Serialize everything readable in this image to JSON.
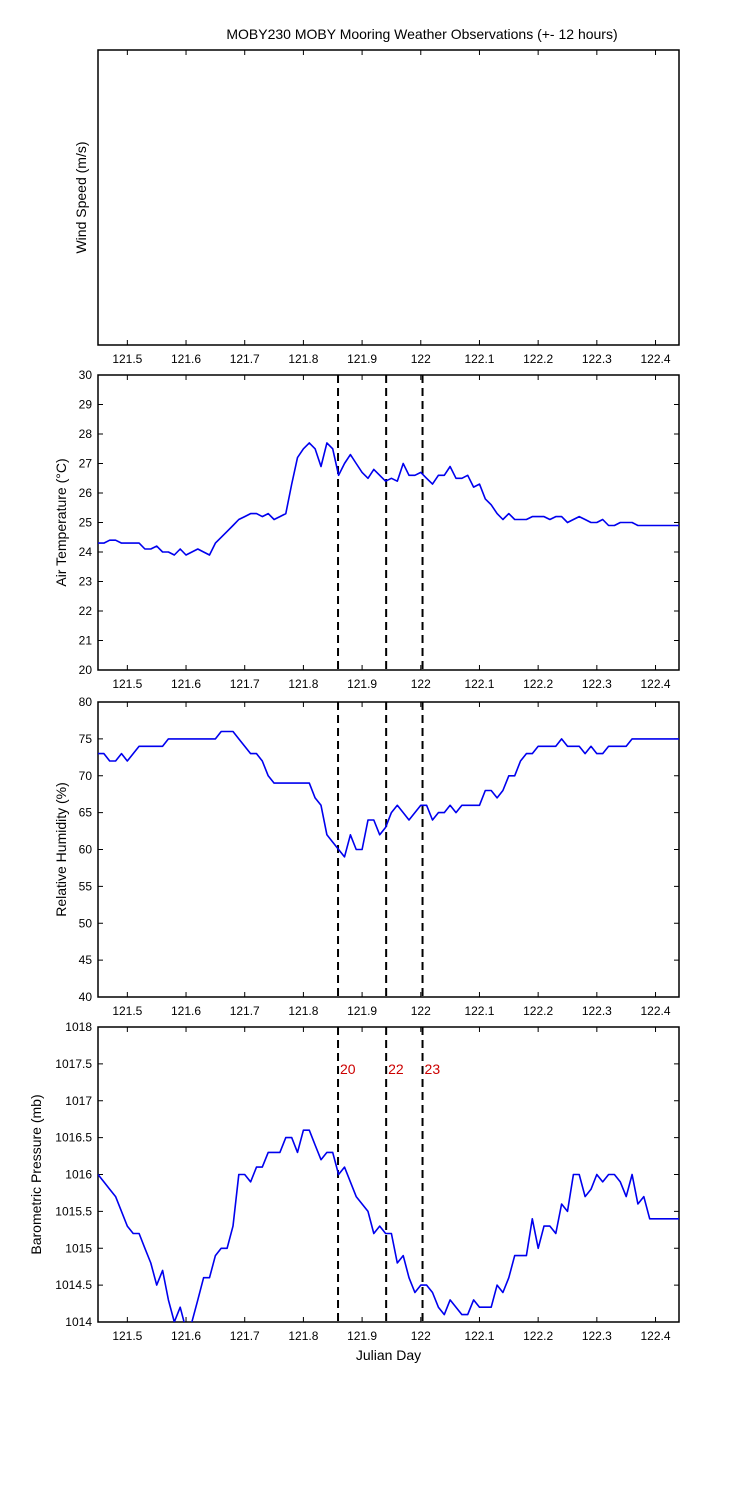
{
  "chart_data": [
    {
      "type": "line",
      "title": "MOBY230 MOBY Mooring Weather Observations (+- 12 hours)",
      "xlabel": "",
      "ylabel": "Wind Speed (m/s)",
      "xlim": [
        121.45,
        122.44
      ],
      "x_ticks": [
        "121.5",
        "121.6",
        "121.7",
        "121.8",
        "121.9",
        "122",
        "122.1",
        "122.2",
        "122.3",
        "122.4"
      ],
      "y_ticks": [],
      "series": [],
      "grid": false
    },
    {
      "type": "line",
      "title": "",
      "xlabel": "",
      "ylabel": "Air Temperature (°C)",
      "xlim": [
        121.45,
        122.44
      ],
      "ylim": [
        20,
        30
      ],
      "x_ticks": [
        "121.5",
        "121.6",
        "121.7",
        "121.8",
        "121.9",
        "122",
        "122.1",
        "122.2",
        "122.3",
        "122.4"
      ],
      "y_ticks": [
        "20",
        "21",
        "22",
        "23",
        "24",
        "25",
        "26",
        "27",
        "28",
        "29",
        "30"
      ],
      "event_lines": [
        121.859,
        121.941,
        122.003
      ],
      "series": [
        {
          "color": "#0000ee",
          "x": [
            121.45,
            121.46,
            121.47,
            121.48,
            121.49,
            121.5,
            121.51,
            121.52,
            121.53,
            121.54,
            121.55,
            121.56,
            121.57,
            121.58,
            121.59,
            121.6,
            121.61,
            121.62,
            121.63,
            121.64,
            121.65,
            121.66,
            121.67,
            121.68,
            121.69,
            121.7,
            121.71,
            121.72,
            121.73,
            121.74,
            121.75,
            121.76,
            121.77,
            121.78,
            121.79,
            121.8,
            121.81,
            121.82,
            121.83,
            121.84,
            121.85,
            121.86,
            121.87,
            121.88,
            121.89,
            121.9,
            121.91,
            121.92,
            121.93,
            121.94,
            121.95,
            121.96,
            121.97,
            121.98,
            121.99,
            122.0,
            122.01,
            122.02,
            122.03,
            122.04,
            122.05,
            122.06,
            122.07,
            122.08,
            122.09,
            122.1,
            122.11,
            122.12,
            122.13,
            122.14,
            122.15,
            122.16,
            122.17,
            122.18,
            122.19,
            122.2,
            122.21,
            122.22,
            122.23,
            122.24,
            122.25,
            122.26,
            122.27,
            122.28,
            122.29,
            122.3,
            122.31,
            122.32,
            122.33,
            122.34,
            122.35,
            122.36,
            122.37,
            122.38,
            122.39,
            122.4,
            122.41,
            122.42,
            122.43,
            122.44
          ],
          "y": [
            24.3,
            24.3,
            24.4,
            24.4,
            24.3,
            24.3,
            24.3,
            24.3,
            24.1,
            24.1,
            24.2,
            24.0,
            24.0,
            23.9,
            24.1,
            23.9,
            24.0,
            24.1,
            24.0,
            23.9,
            24.3,
            24.5,
            24.7,
            24.9,
            25.1,
            25.2,
            25.3,
            25.3,
            25.2,
            25.3,
            25.1,
            25.2,
            25.3,
            26.3,
            27.2,
            27.5,
            27.7,
            27.5,
            26.9,
            27.7,
            27.5,
            26.6,
            27.0,
            27.3,
            27.0,
            26.7,
            26.5,
            26.8,
            26.6,
            26.4,
            26.5,
            26.4,
            27.0,
            26.6,
            26.6,
            26.7,
            26.5,
            26.3,
            26.6,
            26.6,
            26.9,
            26.5,
            26.5,
            26.6,
            26.2,
            26.3,
            25.8,
            25.6,
            25.3,
            25.1,
            25.3,
            25.1,
            25.1,
            25.1,
            25.2,
            25.2,
            25.2,
            25.1,
            25.2,
            25.2,
            25.0,
            25.1,
            25.2,
            25.1,
            25.0,
            25.0,
            25.1,
            24.9,
            24.9,
            25.0,
            25.0,
            25.0,
            24.9,
            24.9,
            24.9,
            24.9,
            24.9,
            24.9,
            24.9,
            24.9
          ]
        }
      ],
      "grid": false
    },
    {
      "type": "line",
      "title": "",
      "xlabel": "",
      "ylabel": "Relative Humidity (%)",
      "xlim": [
        121.45,
        122.44
      ],
      "ylim": [
        40,
        80
      ],
      "x_ticks": [
        "121.5",
        "121.6",
        "121.7",
        "121.8",
        "121.9",
        "122",
        "122.1",
        "122.2",
        "122.3",
        "122.4"
      ],
      "y_ticks": [
        "40",
        "45",
        "50",
        "55",
        "60",
        "65",
        "70",
        "75",
        "80"
      ],
      "event_lines": [
        121.859,
        121.941,
        122.003
      ],
      "series": [
        {
          "color": "#0000ee",
          "x": [
            121.45,
            121.46,
            121.47,
            121.48,
            121.49,
            121.5,
            121.51,
            121.52,
            121.53,
            121.54,
            121.55,
            121.56,
            121.57,
            121.58,
            121.59,
            121.6,
            121.61,
            121.62,
            121.63,
            121.64,
            121.65,
            121.66,
            121.67,
            121.68,
            121.69,
            121.7,
            121.71,
            121.72,
            121.73,
            121.74,
            121.75,
            121.76,
            121.77,
            121.78,
            121.79,
            121.8,
            121.81,
            121.82,
            121.83,
            121.84,
            121.85,
            121.86,
            121.87,
            121.88,
            121.89,
            121.9,
            121.91,
            121.92,
            121.93,
            121.94,
            121.95,
            121.96,
            121.97,
            121.98,
            121.99,
            122.0,
            122.01,
            122.02,
            122.03,
            122.04,
            122.05,
            122.06,
            122.07,
            122.08,
            122.09,
            122.1,
            122.11,
            122.12,
            122.13,
            122.14,
            122.15,
            122.16,
            122.17,
            122.18,
            122.19,
            122.2,
            122.21,
            122.22,
            122.23,
            122.24,
            122.25,
            122.26,
            122.27,
            122.28,
            122.29,
            122.3,
            122.31,
            122.32,
            122.33,
            122.34,
            122.35,
            122.36,
            122.37,
            122.38,
            122.39,
            122.4,
            122.41,
            122.42,
            122.43,
            122.44
          ],
          "y": [
            73,
            73,
            72,
            72,
            73,
            72,
            73,
            74,
            74,
            74,
            74,
            74,
            75,
            75,
            75,
            75,
            75,
            75,
            75,
            75,
            75,
            76,
            76,
            76,
            75,
            74,
            73,
            73,
            72,
            70,
            69,
            69,
            69,
            69,
            69,
            69,
            69,
            67,
            66,
            62,
            61,
            60,
            59,
            62,
            60,
            60,
            64,
            64,
            62,
            63,
            65,
            66,
            65,
            64,
            65,
            66,
            66,
            64,
            65,
            65,
            66,
            65,
            66,
            66,
            66,
            66,
            68,
            68,
            67,
            68,
            70,
            70,
            72,
            73,
            73,
            74,
            74,
            74,
            74,
            75,
            74,
            74,
            74,
            73,
            74,
            73,
            73,
            74,
            74,
            74,
            74,
            75,
            75,
            75,
            75,
            75,
            75,
            75,
            75,
            75
          ]
        }
      ],
      "grid": false
    },
    {
      "type": "line",
      "title": "",
      "xlabel": "Julian Day",
      "ylabel": "Barometric Pressure (mb)",
      "xlim": [
        121.45,
        122.44
      ],
      "ylim": [
        1014,
        1018
      ],
      "x_ticks": [
        "121.5",
        "121.6",
        "121.7",
        "121.8",
        "121.9",
        "122",
        "122.1",
        "122.2",
        "122.3",
        "122.4"
      ],
      "y_ticks": [
        "1014",
        "1014.5",
        "1015",
        "1015.5",
        "1016",
        "1016.5",
        "1017",
        "1017.5",
        "1018"
      ],
      "event_lines": [
        121.859,
        121.941,
        122.003
      ],
      "event_labels": [
        "20",
        "22",
        "23"
      ],
      "series": [
        {
          "color": "#0000ee",
          "x": [
            121.45,
            121.46,
            121.47,
            121.48,
            121.49,
            121.5,
            121.51,
            121.52,
            121.53,
            121.54,
            121.55,
            121.56,
            121.57,
            121.58,
            121.59,
            121.6,
            121.61,
            121.62,
            121.63,
            121.64,
            121.65,
            121.66,
            121.67,
            121.68,
            121.69,
            121.7,
            121.71,
            121.72,
            121.73,
            121.74,
            121.75,
            121.76,
            121.77,
            121.78,
            121.79,
            121.8,
            121.81,
            121.82,
            121.83,
            121.84,
            121.85,
            121.86,
            121.87,
            121.88,
            121.89,
            121.9,
            121.91,
            121.92,
            121.93,
            121.94,
            121.95,
            121.96,
            121.97,
            121.98,
            121.99,
            122.0,
            122.01,
            122.02,
            122.03,
            122.04,
            122.05,
            122.06,
            122.07,
            122.08,
            122.09,
            122.1,
            122.11,
            122.12,
            122.13,
            122.14,
            122.15,
            122.16,
            122.17,
            122.18,
            122.19,
            122.2,
            122.21,
            122.22,
            122.23,
            122.24,
            122.25,
            122.26,
            122.27,
            122.28,
            122.29,
            122.3,
            122.31,
            122.32,
            122.33,
            122.34,
            122.35,
            122.36,
            122.37,
            122.38,
            122.39,
            122.4,
            122.41,
            122.42,
            122.43,
            122.44
          ],
          "y": [
            1016.0,
            1015.9,
            1015.8,
            1015.7,
            1015.5,
            1015.3,
            1015.2,
            1015.2,
            1015.0,
            1014.8,
            1014.5,
            1014.7,
            1014.3,
            1014.0,
            1014.2,
            1013.9,
            1014.0,
            1014.3,
            1014.6,
            1014.6,
            1014.9,
            1015.0,
            1015.0,
            1015.3,
            1016.0,
            1016.0,
            1015.9,
            1016.1,
            1016.1,
            1016.3,
            1016.3,
            1016.3,
            1016.5,
            1016.5,
            1016.3,
            1016.6,
            1016.6,
            1016.4,
            1016.2,
            1016.3,
            1016.3,
            1016.0,
            1016.1,
            1015.9,
            1015.7,
            1015.6,
            1015.5,
            1015.2,
            1015.3,
            1015.2,
            1015.2,
            1014.8,
            1014.9,
            1014.6,
            1014.4,
            1014.5,
            1014.5,
            1014.4,
            1014.2,
            1014.1,
            1014.3,
            1014.2,
            1014.1,
            1014.1,
            1014.3,
            1014.2,
            1014.2,
            1014.2,
            1014.5,
            1014.4,
            1014.6,
            1014.9,
            1014.9,
            1014.9,
            1015.4,
            1015.0,
            1015.3,
            1015.3,
            1015.2,
            1015.6,
            1015.5,
            1016.0,
            1016.0,
            1015.7,
            1015.8,
            1016.0,
            1015.9,
            1016.0,
            1016.0,
            1015.9,
            1015.7,
            1016.0,
            1015.6,
            1015.7,
            1015.4,
            1015.4,
            1015.4,
            1015.4,
            1015.4,
            1015.4
          ]
        }
      ],
      "grid": false
    }
  ]
}
